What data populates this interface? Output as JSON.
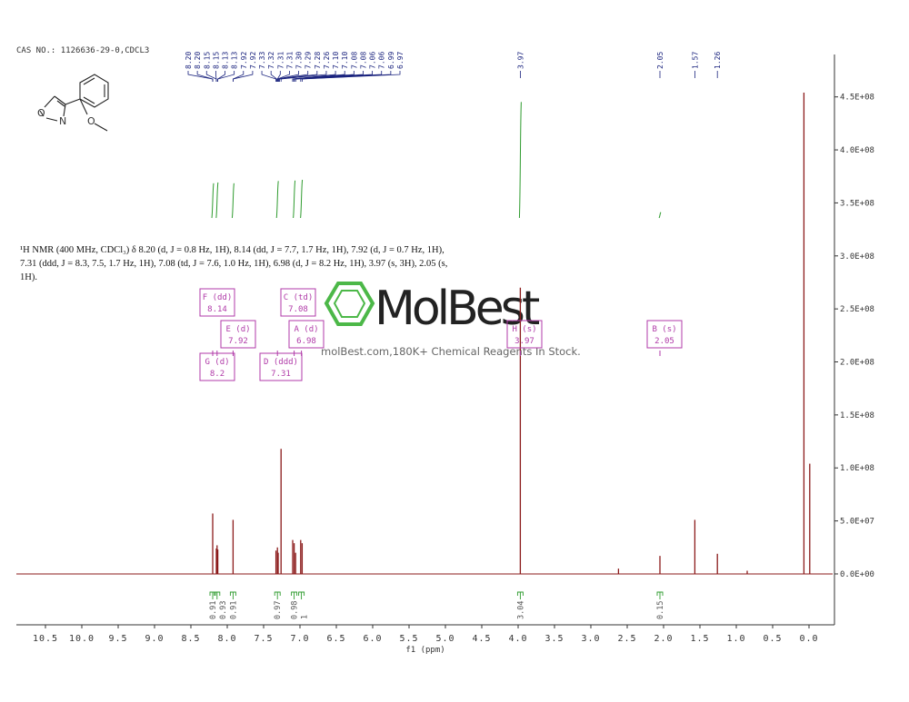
{
  "chart_data": {
    "type": "nmr",
    "title": "CAS NO.: 1126636-29-0,CDCL3",
    "description": "¹H NMR (400 MHz, CDCl₃) δ 8.20 (d, J = 0.8 Hz, 1H), 8.14 (dd, J = 7.7, 1.7 Hz, 1H), 7.92 (d, J = 0.7 Hz, 1H), 7.31 (ddd, J = 8.3, 7.5, 1.7 Hz, 1H), 7.08 (td, J = 7.6, 1.0 Hz, 1H), 6.98 (d, J = 8.2 Hz, 1H), 3.97 (s, 3H), 2.05 (s, 1H).",
    "x_label": "f1 (ppm)",
    "color": "#8b1a1a",
    "integral_color": "#2e9b2e",
    "label_color": "#1a237e",
    "multiplet_color": "#b03aa8",
    "structure_atoms": [
      "O",
      "N",
      "O"
    ],
    "watermark": {
      "logo": "MolBest",
      "tagline": "molBest.com,180K+ Chemical Reagents In Stock."
    },
    "xlim": [
      10.9,
      -0.35
    ],
    "xticks": [
      10.5,
      {
        "value": 10,
        "label": "10.0"
      },
      9.5,
      {
        "value": 9,
        "label": "9.0"
      },
      8.5,
      {
        "value": 8,
        "label": "8.0"
      },
      7.5,
      {
        "value": 7,
        "label": "7.0"
      },
      6.5,
      {
        "value": 6,
        "label": "6.0"
      },
      5.5,
      {
        "value": 5,
        "label": "5.0"
      },
      4.5,
      {
        "value": 4,
        "label": "4.0"
      },
      3.5,
      {
        "value": 3,
        "label": "3.0"
      },
      2.5,
      {
        "value": 2,
        "label": "2.0"
      },
      1.5,
      {
        "value": 1,
        "label": "1.0"
      },
      0.5,
      {
        "value": 0,
        "label": "0.0"
      }
    ],
    "ylim": [
      -48000000,
      490000000
    ],
    "yticks": [
      {
        "value": 0,
        "label": "0.0E+00"
      },
      {
        "value": 50000000,
        "label": "5.0E+07"
      },
      {
        "value": 100000000,
        "label": "1.0E+08"
      },
      {
        "value": 150000000,
        "label": "1.5E+08"
      },
      {
        "value": 200000000,
        "label": "2.0E+08"
      },
      {
        "value": 250000000,
        "label": "2.5E+08"
      },
      {
        "value": 300000000,
        "label": "3.0E+08"
      },
      {
        "value": 350000000,
        "label": "3.5E+08"
      },
      {
        "value": 400000000,
        "label": "4.0E+08"
      },
      {
        "value": 450000000,
        "label": "4.5E+08"
      }
    ],
    "x": [
      8.2,
      8.15,
      8.14,
      8.13,
      7.92,
      7.33,
      7.31,
      7.3,
      7.26,
      7.1,
      7.08,
      7.06,
      6.99,
      6.97,
      3.97,
      2.62,
      2.05,
      1.57,
      1.26,
      0.85,
      0.07,
      -0.01
    ],
    "values": [
      57000000,
      24000000,
      27000000,
      23000000,
      51000000,
      22000000,
      25000000,
      20000000,
      118000000,
      32000000,
      29000000,
      20000000,
      32000000,
      29000000,
      270000000,
      5000000,
      17000000,
      51000000,
      19000000,
      3000000,
      454000000,
      104000000
    ],
    "peak_labels": [
      "8.20",
      "8.20",
      "8.15",
      "8.15",
      "8.13",
      "8.13",
      "7.92",
      "7.92",
      "7.33",
      "7.32",
      "7.31",
      "7.31",
      "7.30",
      "7.29",
      "7.28",
      "7.26",
      "7.10",
      "7.10",
      "7.08",
      "7.08",
      "7.06",
      "7.06",
      "6.99",
      "6.97"
    ],
    "single_labels": [
      "3.97",
      "2.05",
      "1.57",
      "1.26"
    ],
    "integrals": {
      "x": [
        8.2,
        8.14,
        7.92,
        7.31,
        7.08,
        6.98,
        3.97,
        2.05
      ],
      "values": [
        0.91,
        0.93,
        0.91,
        0.97,
        0.98,
        1.0,
        3.04,
        0.15
      ]
    },
    "multiplets": [
      {
        "label": "F (dd)",
        "shift": 8.14
      },
      {
        "label": "E (d)",
        "shift": 7.92
      },
      {
        "label": "G (d)",
        "shift": 8.2
      },
      {
        "label": "C (td)",
        "shift": 7.08
      },
      {
        "label": "A (d)",
        "shift": 6.98
      },
      {
        "label": "D (ddd)",
        "shift": 7.31
      },
      {
        "label": "H (s)",
        "shift": 3.97
      },
      {
        "label": "B (s)",
        "shift": 2.05
      }
    ]
  }
}
